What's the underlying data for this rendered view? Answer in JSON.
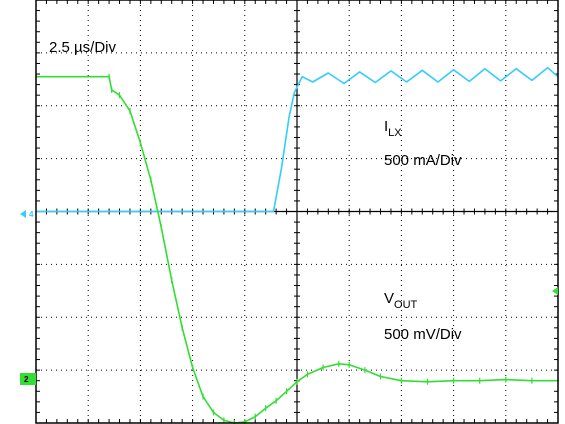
{
  "chart_data": {
    "type": "line",
    "title": "",
    "x_unit": "div",
    "y_unit": "div",
    "xlim": [
      0,
      10
    ],
    "ylim": [
      0,
      8
    ],
    "grid": true,
    "timebase_label": "2.5 µs/Div",
    "channel_markers": [
      {
        "name": "current",
        "label": "4",
        "level_div": 4,
        "color": "#33ccff"
      },
      {
        "name": "voltage",
        "label": "2",
        "level_div": 0.8,
        "color": "#33dd33"
      }
    ],
    "trigger_marker_level_div": 2.6,
    "series": [
      {
        "name": "",
        "annotation": {
          "symbol": "I",
          "subscript": "LX",
          "scale": "500 mA/Div"
        },
        "color": "#33ccff",
        "points": [
          [
            0,
            4
          ],
          [
            4.55,
            4
          ],
          [
            4.7,
            4.8
          ],
          [
            4.85,
            5.8
          ],
          [
            4.95,
            6.25
          ],
          [
            5.1,
            6.55
          ],
          [
            5.3,
            6.45
          ],
          [
            5.6,
            6.62
          ],
          [
            5.9,
            6.42
          ],
          [
            6.2,
            6.64
          ],
          [
            6.5,
            6.44
          ],
          [
            6.8,
            6.66
          ],
          [
            7.1,
            6.45
          ],
          [
            7.4,
            6.67
          ],
          [
            7.7,
            6.45
          ],
          [
            8.0,
            6.68
          ],
          [
            8.3,
            6.46
          ],
          [
            8.6,
            6.7
          ],
          [
            8.9,
            6.47
          ],
          [
            9.2,
            6.7
          ],
          [
            9.5,
            6.48
          ],
          [
            9.8,
            6.72
          ],
          [
            10,
            6.55
          ]
        ]
      },
      {
        "name": "",
        "annotation": {
          "symbol": "V",
          "subscript": "OUT",
          "scale": "500 mV/Div"
        },
        "color": "#33dd33",
        "points": [
          [
            0,
            6.55
          ],
          [
            1.4,
            6.55
          ],
          [
            1.45,
            6.3
          ],
          [
            1.6,
            6.2
          ],
          [
            1.8,
            5.9
          ],
          [
            2.0,
            5.3
          ],
          [
            2.2,
            4.6
          ],
          [
            2.4,
            3.7
          ],
          [
            2.6,
            2.7
          ],
          [
            2.8,
            1.8
          ],
          [
            3.0,
            1.05
          ],
          [
            3.2,
            0.5
          ],
          [
            3.4,
            0.2
          ],
          [
            3.6,
            0.05
          ],
          [
            3.8,
            0.0
          ],
          [
            4.0,
            0.02
          ],
          [
            4.2,
            0.12
          ],
          [
            4.4,
            0.28
          ],
          [
            4.6,
            0.42
          ],
          [
            4.8,
            0.6
          ],
          [
            5.0,
            0.78
          ],
          [
            5.2,
            0.92
          ],
          [
            5.5,
            1.05
          ],
          [
            5.8,
            1.12
          ],
          [
            6.0,
            1.1
          ],
          [
            6.3,
            1.0
          ],
          [
            6.6,
            0.88
          ],
          [
            7.0,
            0.8
          ],
          [
            7.5,
            0.78
          ],
          [
            8.0,
            0.8
          ],
          [
            8.5,
            0.8
          ],
          [
            9.0,
            0.82
          ],
          [
            9.5,
            0.8
          ],
          [
            10,
            0.8
          ]
        ]
      }
    ]
  },
  "labels": {
    "timebase": "2.5 µs/Div",
    "ilx_symbol": "I",
    "ilx_sub": "LX",
    "ilx_scale": "500 mA/Div",
    "vout_symbol": "V",
    "vout_sub": "OUT",
    "vout_scale": "500 mV/Div",
    "ch_current": "4",
    "ch_voltage": "2"
  }
}
